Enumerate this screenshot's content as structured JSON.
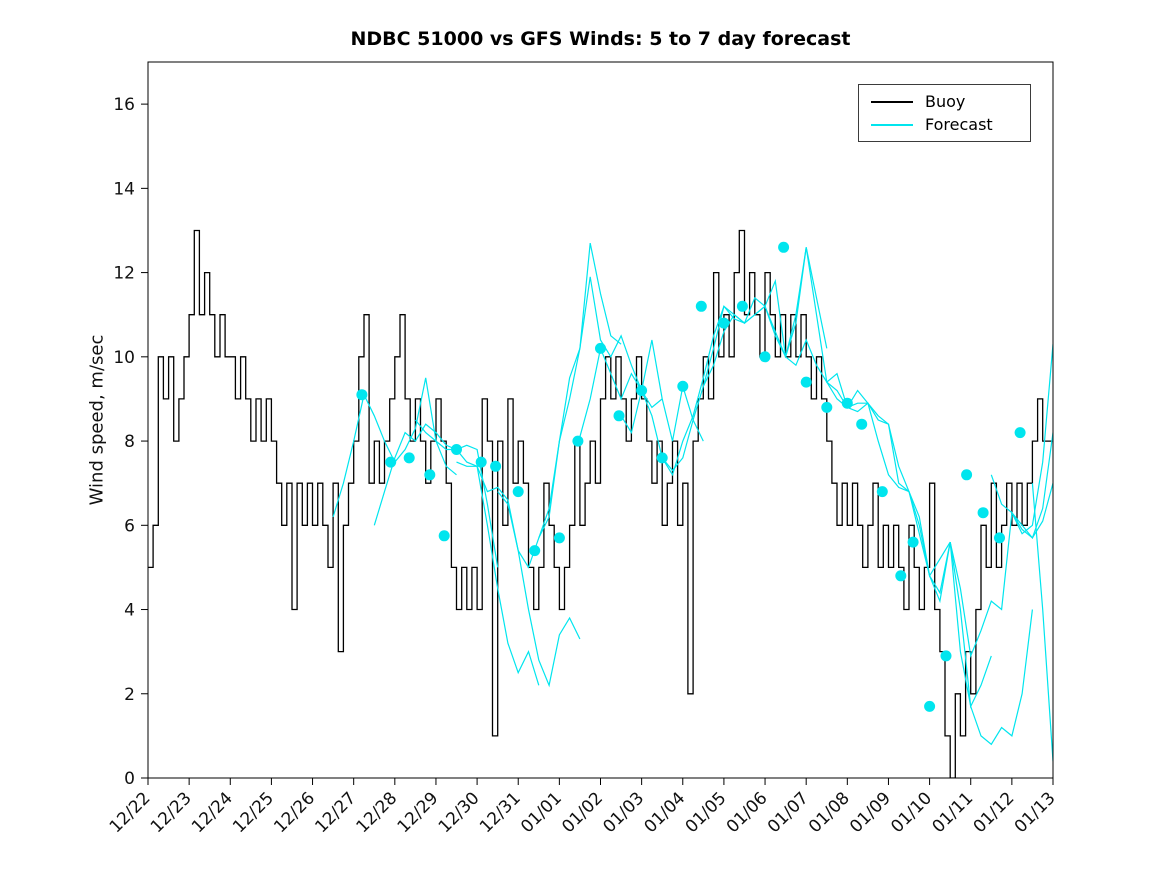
{
  "chart_data": {
    "type": "line",
    "title": "NDBC 51000 vs GFS Winds: 5 to 7 day forecast",
    "xlabel": "",
    "ylabel": "Wind speed, m/sec",
    "xlim": [
      0,
      22
    ],
    "ylim": [
      0,
      17
    ],
    "yticks": [
      0,
      2,
      4,
      6,
      8,
      10,
      12,
      14,
      16
    ],
    "xticks": [
      0,
      1,
      2,
      3,
      4,
      5,
      6,
      7,
      8,
      9,
      10,
      11,
      12,
      13,
      14,
      15,
      16,
      17,
      18,
      19,
      20,
      21,
      22
    ],
    "xtick_labels": [
      "12/22",
      "12/23",
      "12/24",
      "12/25",
      "12/26",
      "12/27",
      "12/28",
      "12/29",
      "12/30",
      "12/31",
      "01/01",
      "01/02",
      "01/03",
      "01/04",
      "01/05",
      "01/06",
      "01/07",
      "01/08",
      "01/09",
      "01/10",
      "01/11",
      "01/12",
      "01/13"
    ],
    "xtick_rotation_deg": 45,
    "x_unit": "days since 12/22",
    "grid": false,
    "legend": {
      "position": "top-right",
      "entries": [
        "Buoy",
        "Forecast"
      ]
    },
    "series": [
      {
        "name": "Buoy",
        "color": "#000000",
        "style": "step",
        "x_start": 0,
        "x_step": 0.125,
        "values": [
          5,
          6,
          10,
          9,
          10,
          8,
          9,
          10,
          11,
          13,
          11,
          12,
          11,
          10,
          11,
          10,
          10,
          9,
          10,
          9,
          8,
          9,
          8,
          9,
          8,
          7,
          6,
          7,
          4,
          7,
          6,
          7,
          6,
          7,
          6,
          5,
          7,
          3,
          6,
          7,
          8,
          10,
          11,
          7,
          8,
          7,
          8,
          9,
          10,
          11,
          9,
          8,
          9,
          8,
          7,
          8,
          9,
          8,
          7,
          5,
          4,
          5,
          4,
          5,
          4,
          9,
          8,
          1,
          8,
          6,
          9,
          7,
          8,
          7,
          5,
          4,
          5,
          7,
          6,
          5,
          4,
          5,
          6,
          8,
          6,
          7,
          8,
          7,
          9,
          10,
          9,
          10,
          9,
          8,
          9,
          10,
          9,
          8,
          7,
          8,
          6,
          7,
          8,
          6,
          7,
          2,
          8,
          9,
          10,
          9,
          12,
          10,
          11,
          10,
          12,
          13,
          11,
          12,
          11,
          10,
          12,
          11,
          10,
          11,
          10,
          11,
          10,
          11,
          10,
          9,
          10,
          9,
          8,
          7,
          6,
          7,
          6,
          7,
          6,
          5,
          6,
          7,
          5,
          6,
          5,
          6,
          5,
          4,
          6,
          5,
          4,
          5,
          7,
          4,
          3,
          1,
          0,
          2,
          1,
          3,
          2,
          4,
          6,
          5,
          7,
          5,
          6,
          7,
          6,
          7,
          6,
          7,
          8,
          9,
          8,
          8,
          8
        ]
      },
      {
        "name": "Forecast",
        "color": "#00e5ee",
        "style": "line",
        "segments": [
          {
            "x0": 4.5,
            "dx": 0.25,
            "y": [
              6.2,
              7.0,
              8.0,
              9.1,
              8.6,
              8.0,
              7.5,
              7.8,
              8.3,
              9.5,
              8.0,
              7.4,
              7.2
            ]
          },
          {
            "x0": 5.5,
            "dx": 0.25,
            "y": [
              6.0,
              6.8,
              7.6,
              8.2,
              8.0,
              8.4,
              8.2,
              7.9,
              7.8,
              7.9,
              7.8,
              6.5,
              5.0
            ]
          },
          {
            "x0": 6.5,
            "dx": 0.25,
            "y": [
              8.5,
              8.2,
              8.0,
              7.8,
              7.8,
              7.5,
              7.4,
              6.0,
              4.5,
              3.2,
              2.5,
              3.0,
              2.2
            ]
          },
          {
            "x0": 7.5,
            "dx": 0.25,
            "y": [
              7.5,
              7.4,
              7.4,
              6.8,
              6.9,
              6.6,
              5.4,
              4.0,
              2.8,
              2.2,
              3.4,
              3.8,
              3.3
            ]
          },
          {
            "x0": 8.5,
            "dx": 0.25,
            "y": [
              6.8,
              6.5,
              5.4,
              5.0,
              5.7,
              6.4,
              8.0,
              9.0,
              10.2,
              12.7,
              11.5,
              10.5,
              10.3
            ]
          },
          {
            "x0": 9.5,
            "dx": 0.25,
            "y": [
              5.7,
              6.2,
              8.0,
              9.5,
              10.2,
              11.9,
              10.4,
              10.0,
              10.5,
              9.8,
              9.2,
              8.8,
              9.0
            ]
          },
          {
            "x0": 10.5,
            "dx": 0.25,
            "y": [
              8.1,
              9.0,
              10.2,
              9.6,
              9.0,
              9.6,
              9.2,
              10.4,
              9.0,
              8.0,
              9.3,
              8.5,
              8.0
            ]
          },
          {
            "x0": 11.5,
            "dx": 0.25,
            "y": [
              8.6,
              8.2,
              9.2,
              8.6,
              7.6,
              7.2,
              8.0,
              8.6,
              9.5,
              10.5,
              11.2,
              10.9,
              10.8
            ]
          },
          {
            "x0": 12.5,
            "dx": 0.25,
            "y": [
              7.6,
              7.3,
              7.6,
              8.5,
              9.3,
              10.2,
              11.2,
              11.0,
              10.8,
              11.0,
              11.2,
              10.6,
              10.0
            ]
          },
          {
            "x0": 13.5,
            "dx": 0.25,
            "y": [
              9.3,
              9.8,
              10.6,
              11.0,
              10.8,
              11.4,
              11.2,
              11.8,
              10.0,
              11.0,
              12.6,
              11.4,
              10.2
            ]
          },
          {
            "x0": 14.5,
            "dx": 0.25,
            "y": [
              10.8,
              11.0,
              11.2,
              10.5,
              10.0,
              10.8,
              12.6,
              11.0,
              9.4,
              9.6,
              8.8,
              9.2,
              8.9
            ]
          },
          {
            "x0": 15.5,
            "dx": 0.25,
            "y": [
              10.0,
              9.8,
              10.4,
              9.8,
              9.4,
              9.0,
              8.8,
              8.9,
              8.9,
              8.6,
              8.4,
              7.4,
              6.8
            ]
          },
          {
            "x0": 16.5,
            "dx": 0.25,
            "y": [
              9.4,
              9.2,
              8.8,
              8.7,
              8.9,
              8.5,
              8.4,
              7.0,
              6.8,
              6.0,
              4.8,
              5.2,
              5.6
            ]
          },
          {
            "x0": 17.5,
            "dx": 0.25,
            "y": [
              8.9,
              8.0,
              7.2,
              6.9,
              6.8,
              6.2,
              4.8,
              4.4,
              5.6,
              4.0,
              1.7,
              2.2,
              2.9
            ]
          },
          {
            "x0": 18.5,
            "dx": 0.25,
            "y": [
              6.8,
              5.8,
              4.8,
              4.2,
              5.6,
              3.0,
              1.7,
              1.0,
              0.8,
              1.2,
              1.0,
              2.0,
              4.0
            ]
          },
          {
            "x0": 19.5,
            "dx": 0.25,
            "y": [
              5.6,
              4.5,
              2.9,
              3.5,
              4.2,
              4.0,
              6.3,
              5.9,
              5.7,
              6.1,
              7.0
            ]
          },
          {
            "x0": 20.5,
            "dx": 0.25,
            "y": [
              7.2,
              6.5,
              6.3,
              6.0,
              5.7,
              6.4,
              8.2
            ]
          },
          {
            "x0": 21.0,
            "dx": 0.25,
            "y": [
              6.3,
              5.8,
              6.0,
              7.5,
              10.3
            ]
          },
          {
            "x0": 21.5,
            "dx": 0.25,
            "y": [
              7.0,
              4.0,
              0.4
            ]
          }
        ]
      }
    ],
    "markers": {
      "name": "forecast-verification-points",
      "color": "#00e5ee",
      "points": [
        [
          5.2,
          9.1
        ],
        [
          5.9,
          7.5
        ],
        [
          6.35,
          7.6
        ],
        [
          6.85,
          7.2
        ],
        [
          7.2,
          5.75
        ],
        [
          7.5,
          7.8
        ],
        [
          8.1,
          7.5
        ],
        [
          8.45,
          7.4
        ],
        [
          9.0,
          6.8
        ],
        [
          9.4,
          5.4
        ],
        [
          10.0,
          5.7
        ],
        [
          10.45,
          8.0
        ],
        [
          11.0,
          10.2
        ],
        [
          11.45,
          8.6
        ],
        [
          12.0,
          9.2
        ],
        [
          12.5,
          7.6
        ],
        [
          13.0,
          9.3
        ],
        [
          13.45,
          11.2
        ],
        [
          14.0,
          10.8
        ],
        [
          14.45,
          11.2
        ],
        [
          15.0,
          10.0
        ],
        [
          15.45,
          12.6
        ],
        [
          16.0,
          9.4
        ],
        [
          16.5,
          8.8
        ],
        [
          17.0,
          8.9
        ],
        [
          17.35,
          8.4
        ],
        [
          17.85,
          6.8
        ],
        [
          18.3,
          4.8
        ],
        [
          18.6,
          5.6
        ],
        [
          19.0,
          1.7
        ],
        [
          19.4,
          2.9
        ],
        [
          19.9,
          7.2
        ],
        [
          20.3,
          6.3
        ],
        [
          20.7,
          5.7
        ],
        [
          21.2,
          8.2
        ]
      ]
    }
  }
}
